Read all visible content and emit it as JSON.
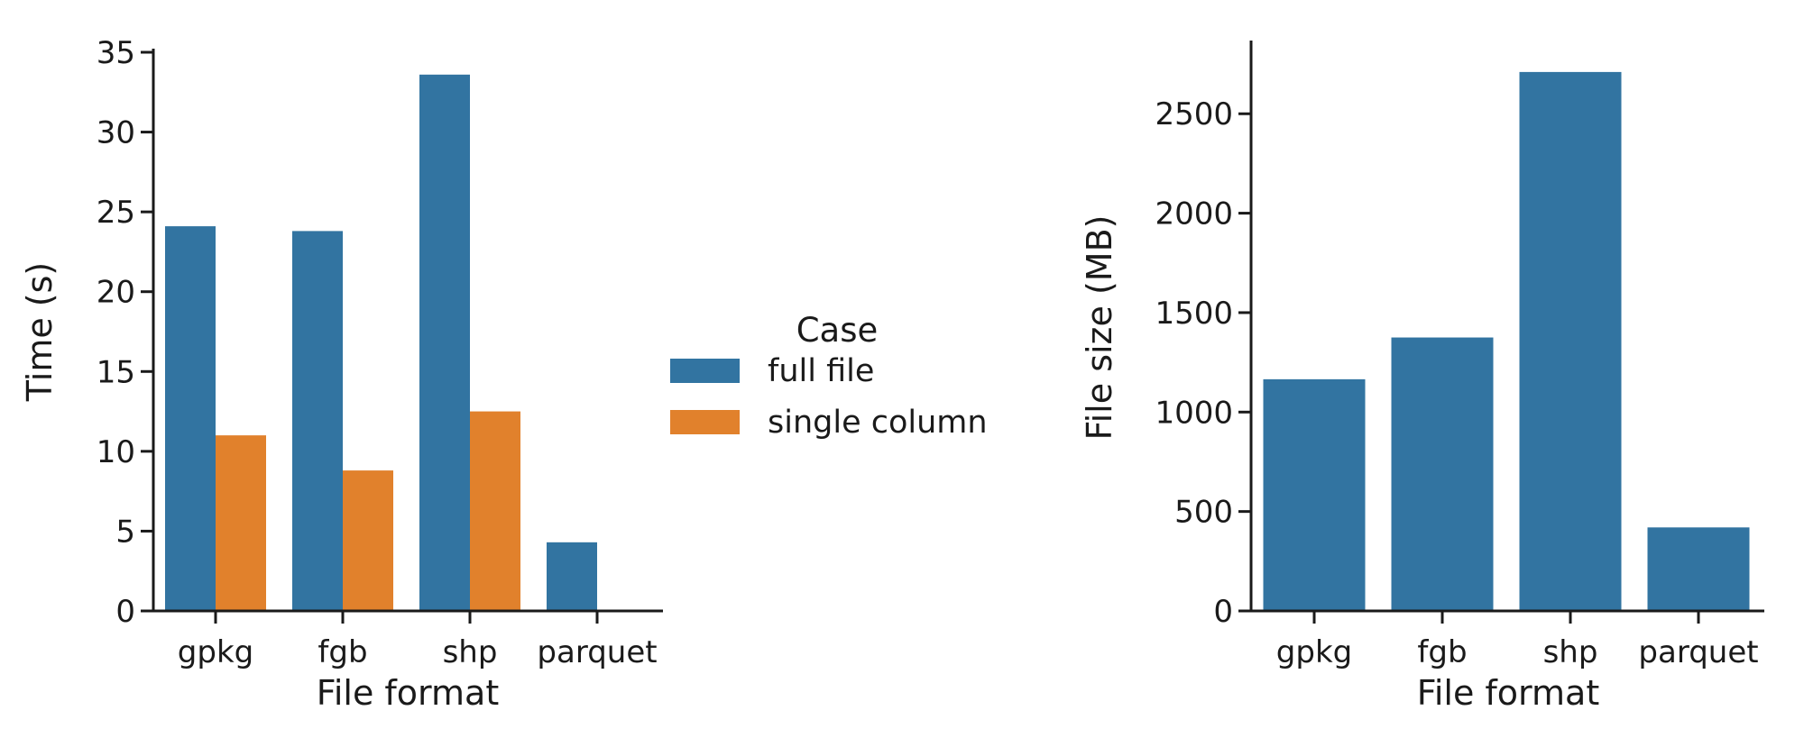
{
  "chart_data": [
    {
      "type": "bar",
      "categories": [
        "gpkg",
        "fgb",
        "shp",
        "parquet"
      ],
      "series": [
        {
          "name": "full file",
          "values": [
            24.1,
            23.8,
            33.6,
            4.3
          ],
          "color": "#3274a1"
        },
        {
          "name": "single column",
          "values": [
            11.0,
            8.8,
            12.5,
            null
          ],
          "color": "#e1812c"
        }
      ],
      "xlabel": "File format",
      "ylabel": "Time (s)",
      "ylim": [
        0,
        35
      ],
      "yticks": [
        0,
        5,
        10,
        15,
        20,
        25,
        30,
        35
      ],
      "legend": {
        "title": "Case",
        "placement": "right"
      },
      "grid": false
    },
    {
      "type": "bar",
      "categories": [
        "gpkg",
        "fgb",
        "shp",
        "parquet"
      ],
      "series": [
        {
          "values": [
            1165,
            1375,
            2710,
            420
          ],
          "color": "#3274a1"
        }
      ],
      "xlabel": "File format",
      "ylabel": "File size (MB)",
      "ylim": [
        0,
        2850
      ],
      "yticks": [
        0,
        500,
        1000,
        1500,
        2000,
        2500
      ],
      "grid": false
    }
  ]
}
